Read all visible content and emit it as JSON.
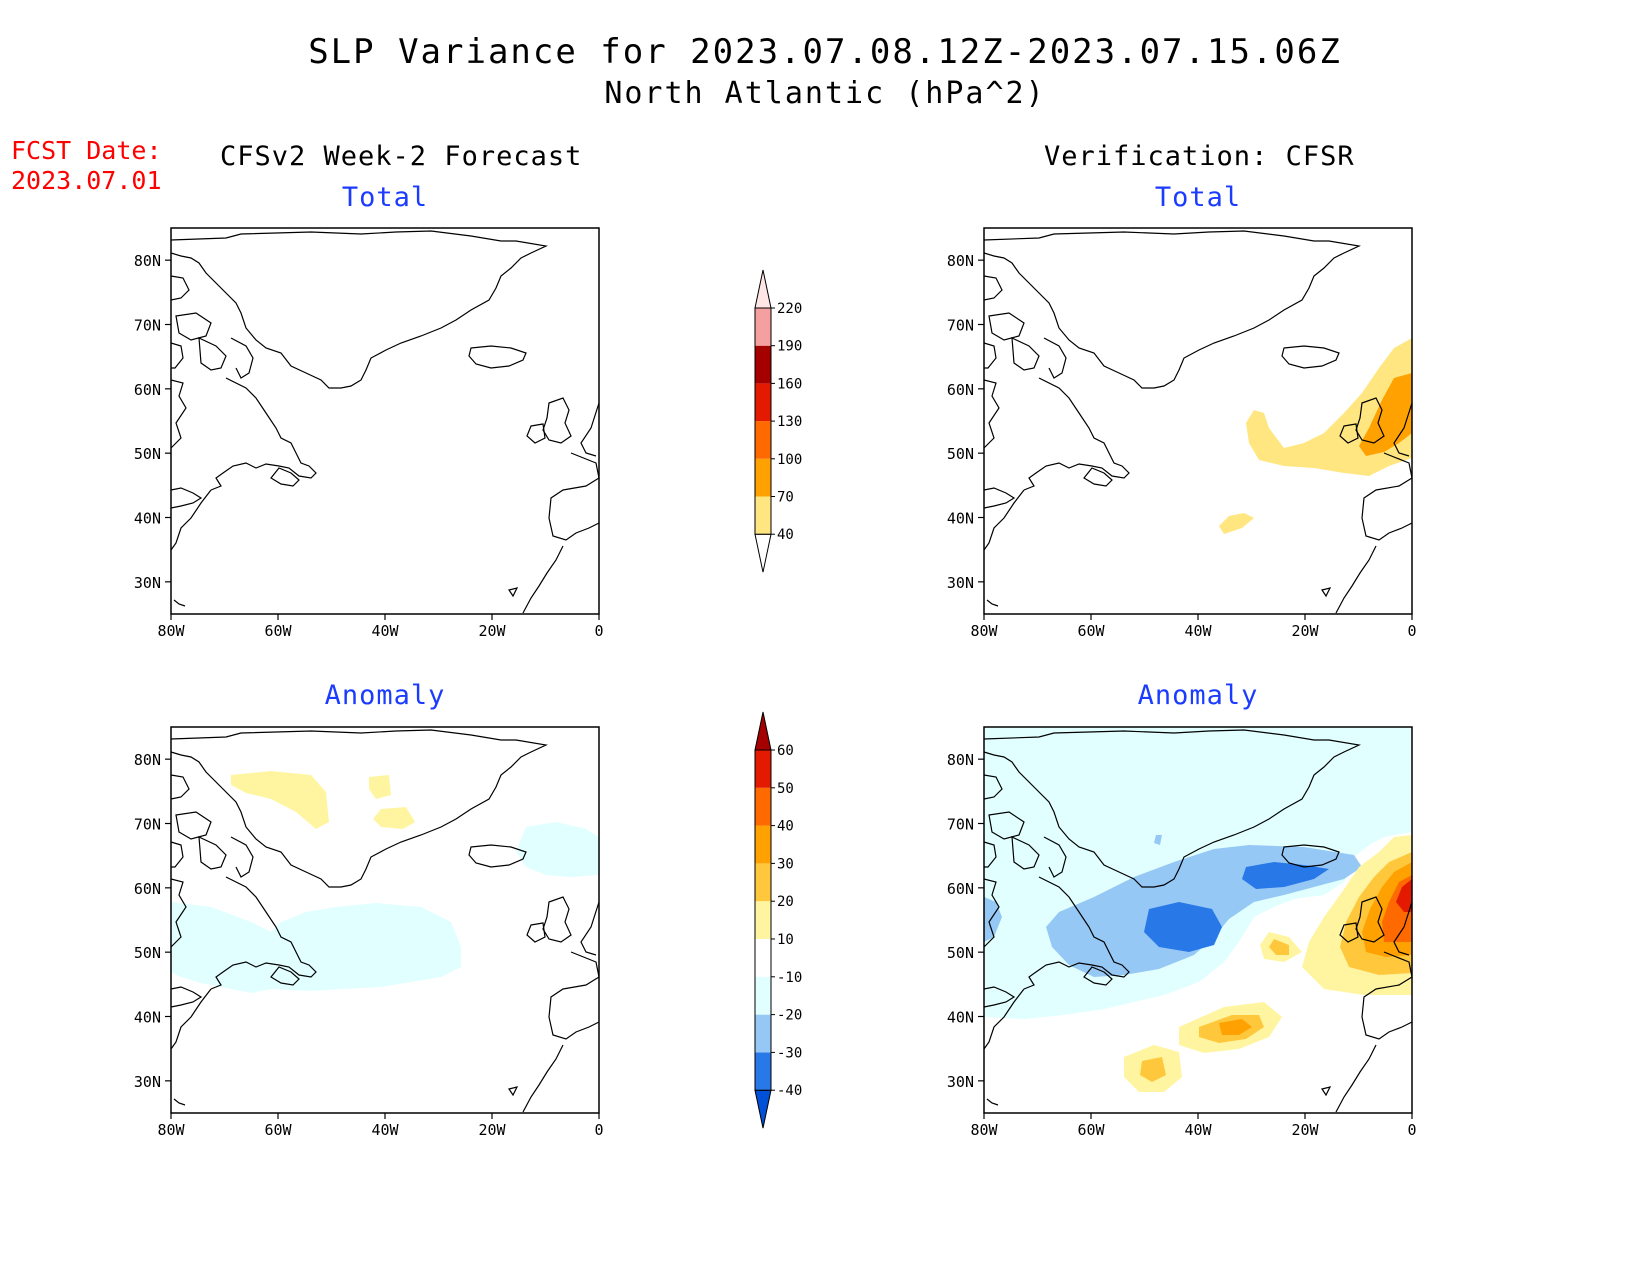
{
  "title": {
    "line1": "SLP Variance for 2023.07.08.12Z-2023.07.15.06Z",
    "line2": "North Atlantic (hPa^2)"
  },
  "forecast_date": {
    "label": "FCST Date:",
    "value": "2023.07.01"
  },
  "columns": {
    "left": "CFSv2 Week-2 Forecast",
    "right": "Verification: CFSR"
  },
  "panel_titles": {
    "total": "Total",
    "anomaly": "Anomaly"
  },
  "axes": {
    "lat_ticks": [
      "30N",
      "40N",
      "50N",
      "60N",
      "70N",
      "80N"
    ],
    "lon_ticks": [
      "80W",
      "60W",
      "40W",
      "20W",
      "0"
    ]
  },
  "colorbars": {
    "total": {
      "labels": [
        "40",
        "70",
        "100",
        "130",
        "160",
        "190",
        "220"
      ],
      "colors": [
        "#ffe680",
        "#ffa100",
        "#ff6a00",
        "#e31a00",
        "#a50000",
        "#f4a0a0",
        "#ffe6e6"
      ]
    },
    "anomaly": {
      "labels": [
        "-40",
        "-30",
        "-20",
        "-10",
        "10",
        "20",
        "30",
        "40",
        "50",
        "60"
      ],
      "colors": [
        "#0050d8",
        "#2878e8",
        "#96c8f5",
        "#e1ffff",
        "#ffffff",
        "#fff5a0",
        "#ffc83c",
        "#ffa100",
        "#ff6a00",
        "#e31a00",
        "#a50000"
      ]
    }
  },
  "chart_data": {
    "type": "heatmap",
    "region": "North Atlantic",
    "variable": "SLP Variance",
    "units": "hPa^2",
    "lon_range": [
      -80,
      0
    ],
    "lat_range": [
      25,
      85
    ],
    "panels": [
      {
        "id": "forecast-total",
        "column": "CFSv2 Week-2 Forecast",
        "title": "Total",
        "features": []
      },
      {
        "id": "forecast-anomaly",
        "column": "CFSv2 Week-2 Forecast",
        "title": "Anomaly",
        "features": [
          {
            "level": "10-20",
            "lon": -56,
            "lat": 79
          },
          {
            "level": "10-20",
            "lon": -42,
            "lat": 77
          },
          {
            "level": "10-20",
            "lon": -40,
            "lat": 71
          },
          {
            "level": "-10 to -20",
            "lon": -45,
            "lat": 50
          },
          {
            "level": "-10 to -20",
            "lon": -5,
            "lat": 66
          }
        ]
      },
      {
        "id": "verification-total",
        "column": "Verification: CFSR",
        "title": "Total",
        "features": [
          {
            "level": "40-70",
            "lon": -20,
            "lat": 51
          },
          {
            "level": "70-100",
            "lon": -3,
            "lat": 58
          },
          {
            "level": "40-70",
            "lon": -33,
            "lat": 40
          }
        ]
      },
      {
        "id": "verification-anomaly",
        "column": "Verification: CFSR",
        "title": "Anomaly",
        "features": [
          {
            "level": "-10 to -20",
            "lon": -50,
            "lat": 65
          },
          {
            "level": "-30 to -40",
            "lon": -43,
            "lat": 55
          },
          {
            "level": "-30 to -40",
            "lon": -28,
            "lat": 62
          },
          {
            "level": "40-50",
            "lon": -3,
            "lat": 58
          },
          {
            "level": "30-40",
            "lon": -32,
            "lat": 38
          },
          {
            "level": "20-30",
            "lon": -47,
            "lat": 32
          },
          {
            "level": "10-20",
            "lon": -22,
            "lat": 51
          }
        ]
      }
    ]
  }
}
